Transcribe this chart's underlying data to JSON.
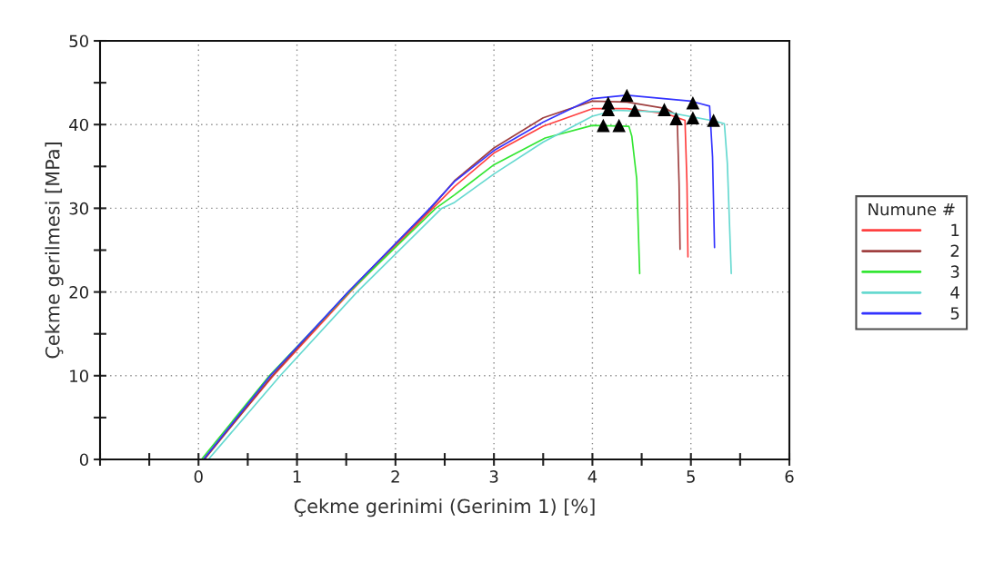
{
  "chart_data": {
    "type": "line",
    "xlabel": "Çekme gerinimi (Gerinim 1) [%]",
    "ylabel": "Çekme gerilmesi [MPa]",
    "legend_title": "Numune #",
    "xlim": [
      -1,
      6
    ],
    "ylim": [
      0,
      50
    ],
    "xticks": [
      {
        "value": -1,
        "label": null
      },
      {
        "value": -0.5,
        "label": null
      },
      0,
      {
        "value": 0.5,
        "label": null
      },
      1,
      {
        "value": 1.5,
        "label": null
      },
      2,
      {
        "value": 2.5,
        "label": null
      },
      3,
      {
        "value": 3.5,
        "label": null
      },
      4,
      {
        "value": 4.5,
        "label": null
      },
      5,
      {
        "value": 5.5,
        "label": null
      },
      6
    ],
    "yticks": [
      0,
      {
        "value": 5,
        "label": null
      },
      10,
      {
        "value": 15,
        "label": null
      },
      20,
      {
        "value": 25,
        "label": null
      },
      30,
      {
        "value": 35,
        "label": null
      },
      40,
      {
        "value": 45,
        "label": null
      },
      50
    ],
    "grid": true,
    "legend": "right",
    "line_style": "solid",
    "series": [
      {
        "name": "1",
        "color": "#ff4040",
        "x": [
          0.05,
          0.76,
          1.54,
          2.38,
          2.6,
          3.0,
          3.5,
          4.0,
          4.35,
          4.75,
          4.94,
          4.96,
          4.97
        ],
        "values": [
          0,
          10,
          20,
          30,
          32.6,
          36.6,
          39.8,
          41.9,
          41.9,
          41.3,
          40.5,
          33,
          24.2
        ]
      },
      {
        "name": "2",
        "color": "#a04040",
        "x": [
          0.06,
          0.75,
          1.52,
          2.36,
          2.6,
          3.0,
          3.5,
          4.0,
          4.35,
          4.75,
          4.86,
          4.88,
          4.89
        ],
        "values": [
          0,
          10,
          20,
          30,
          33.3,
          37.2,
          40.8,
          42.8,
          42.7,
          41.9,
          41.1,
          33,
          25.1
        ]
      },
      {
        "name": "3",
        "color": "#33e633",
        "x": [
          0.03,
          0.72,
          1.53,
          2.41,
          2.6,
          3.0,
          3.52,
          4.0,
          4.37,
          4.4,
          4.45,
          4.48
        ],
        "values": [
          0,
          10,
          20,
          30,
          31.6,
          35.2,
          38.4,
          39.9,
          39.8,
          38.6,
          33.5,
          22.2
        ]
      },
      {
        "name": "4",
        "color": "#66d9d0",
        "x": [
          0.1,
          0.83,
          1.61,
          2.47,
          2.6,
          3.0,
          3.5,
          4.0,
          4.23,
          4.75,
          5.25,
          5.34,
          5.37,
          5.41
        ],
        "values": [
          0,
          10,
          20,
          30,
          30.7,
          34.1,
          37.9,
          41.0,
          41.7,
          41.5,
          40.4,
          40.1,
          35.4,
          22.2
        ]
      },
      {
        "name": "5",
        "color": "#3333ff",
        "x": [
          0.05,
          0.73,
          1.52,
          2.35,
          2.6,
          3.0,
          3.5,
          4.0,
          4.35,
          5.0,
          5.19,
          5.22,
          5.24
        ],
        "values": [
          0,
          10,
          20,
          30,
          33.2,
          36.9,
          40.3,
          43.1,
          43.5,
          42.8,
          42.2,
          36.1,
          25.3
        ]
      },
      {
        "type": "scatter",
        "marker": "triangle",
        "color": "#000000",
        "x": [
          4.16,
          4.16,
          4.35,
          4.43,
          4.11,
          4.27,
          4.73,
          4.85,
          5.02,
          5.02,
          5.23
        ],
        "values": [
          42.6,
          41.8,
          43.5,
          41.7,
          39.9,
          39.9,
          41.8,
          40.7,
          42.6,
          40.8,
          40.5
        ]
      }
    ]
  }
}
